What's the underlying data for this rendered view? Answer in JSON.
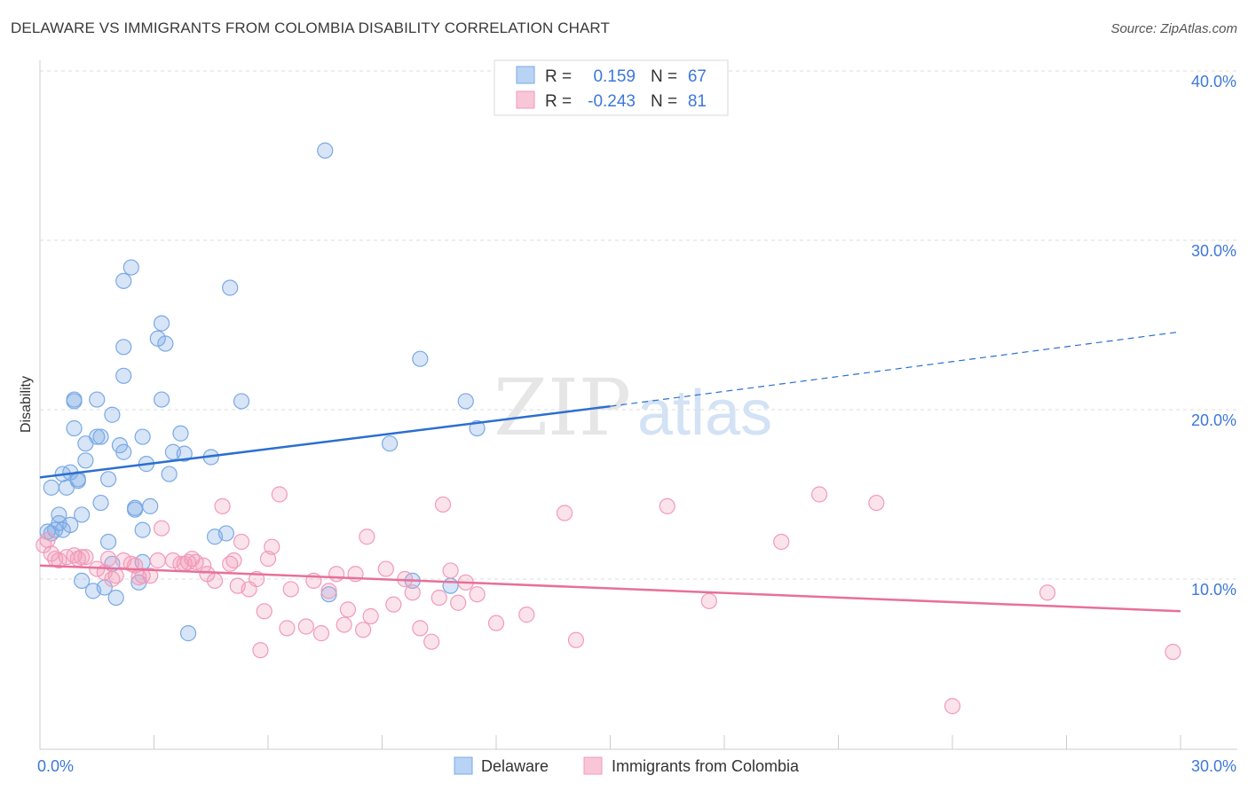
{
  "header": {
    "title": "DELAWARE VS IMMIGRANTS FROM COLOMBIA DISABILITY CORRELATION CHART",
    "source": "Source: ZipAtlas.com"
  },
  "watermark": {
    "zip": "ZIP",
    "atlas": "atlas"
  },
  "stats_box": {
    "rows": [
      {
        "r_label": "R =",
        "r_value": "0.159",
        "n_label": "N =",
        "n_value": "67"
      },
      {
        "r_label": "R =",
        "r_value": "-0.243",
        "n_label": "N =",
        "n_value": "81"
      }
    ]
  },
  "colors": {
    "delaware": "#7aa9e6",
    "delaware_line": "#2b6fd0",
    "colombia": "#f29ab8",
    "colombia_line": "#e8709a",
    "value_text": "#3d78d8",
    "grid": "#dddddd"
  },
  "chart_data": {
    "type": "scatter",
    "title": "DELAWARE VS IMMIGRANTS FROM COLOMBIA DISABILITY CORRELATION CHART",
    "xlabel": "",
    "ylabel": "Disability",
    "xlim": [
      0,
      30
    ],
    "ylim": [
      0,
      40
    ],
    "x_tick_labels": [
      "0.0%",
      "30.0%"
    ],
    "y_ticks": [
      10,
      20,
      30,
      40
    ],
    "y_tick_labels": [
      "10.0%",
      "20.0%",
      "30.0%",
      "40.0%"
    ],
    "grid": true,
    "legend_position": "bottom-center",
    "series": [
      {
        "name": "Delaware",
        "r": 0.159,
        "n": 67,
        "trend": {
          "x0": 0,
          "y0": 16.0,
          "x1": 15,
          "y1": 20.2,
          "dashed_to_x": 30,
          "dashed_to_y": 24.6
        },
        "points": [
          [
            0.2,
            12.8
          ],
          [
            0.3,
            12.7
          ],
          [
            0.4,
            12.9
          ],
          [
            0.5,
            13.3
          ],
          [
            0.5,
            13.8
          ],
          [
            0.6,
            12.9
          ],
          [
            0.3,
            15.4
          ],
          [
            0.6,
            16.2
          ],
          [
            0.7,
            15.4
          ],
          [
            0.8,
            16.3
          ],
          [
            0.8,
            13.2
          ],
          [
            1.0,
            15.8
          ],
          [
            1.0,
            15.9
          ],
          [
            1.1,
            13.8
          ],
          [
            1.1,
            9.9
          ],
          [
            1.2,
            17.0
          ],
          [
            1.2,
            18.0
          ],
          [
            0.9,
            18.9
          ],
          [
            0.9,
            20.5
          ],
          [
            0.9,
            20.6
          ],
          [
            1.5,
            20.6
          ],
          [
            1.5,
            18.4
          ],
          [
            1.6,
            18.4
          ],
          [
            1.6,
            14.5
          ],
          [
            1.7,
            9.5
          ],
          [
            1.8,
            12.2
          ],
          [
            1.8,
            15.9
          ],
          [
            1.9,
            10.9
          ],
          [
            1.9,
            19.7
          ],
          [
            2.1,
            17.9
          ],
          [
            2.2,
            17.5
          ],
          [
            2.2,
            22.0
          ],
          [
            2.2,
            23.7
          ],
          [
            2.2,
            27.6
          ],
          [
            2.4,
            28.4
          ],
          [
            2.5,
            14.1
          ],
          [
            2.5,
            14.2
          ],
          [
            2.6,
            9.8
          ],
          [
            2.7,
            11.0
          ],
          [
            2.7,
            12.9
          ],
          [
            2.7,
            18.4
          ],
          [
            2.8,
            16.8
          ],
          [
            2.9,
            14.3
          ],
          [
            3.1,
            24.2
          ],
          [
            3.2,
            25.1
          ],
          [
            3.2,
            20.6
          ],
          [
            3.3,
            23.9
          ],
          [
            3.4,
            16.2
          ],
          [
            3.5,
            17.5
          ],
          [
            3.7,
            18.6
          ],
          [
            3.8,
            17.4
          ],
          [
            3.9,
            6.8
          ],
          [
            4.5,
            17.2
          ],
          [
            4.6,
            12.5
          ],
          [
            4.9,
            12.7
          ],
          [
            5.0,
            27.2
          ],
          [
            5.3,
            20.5
          ],
          [
            7.5,
            35.3
          ],
          [
            7.6,
            9.1
          ],
          [
            9.2,
            18.0
          ],
          [
            9.8,
            9.9
          ],
          [
            10.0,
            23.0
          ],
          [
            10.8,
            9.6
          ],
          [
            11.2,
            20.5
          ],
          [
            11.5,
            18.9
          ],
          [
            1.4,
            9.3
          ],
          [
            2.0,
            8.9
          ]
        ]
      },
      {
        "name": "Immigrants from Colombia",
        "r": -0.243,
        "n": 81,
        "trend": {
          "x0": 0,
          "y0": 10.8,
          "x1": 30,
          "y1": 8.1
        },
        "points": [
          [
            0.1,
            12.0
          ],
          [
            0.2,
            12.3
          ],
          [
            0.3,
            11.5
          ],
          [
            0.4,
            11.2
          ],
          [
            0.5,
            11.1
          ],
          [
            0.7,
            11.3
          ],
          [
            0.9,
            11.4
          ],
          [
            1.0,
            11.2
          ],
          [
            1.1,
            11.3
          ],
          [
            1.2,
            11.3
          ],
          [
            1.5,
            10.6
          ],
          [
            1.7,
            10.4
          ],
          [
            1.8,
            11.2
          ],
          [
            1.9,
            10.0
          ],
          [
            2.0,
            10.2
          ],
          [
            2.2,
            11.1
          ],
          [
            2.4,
            10.9
          ],
          [
            2.5,
            10.8
          ],
          [
            2.6,
            10.1
          ],
          [
            2.7,
            10.2
          ],
          [
            2.9,
            10.2
          ],
          [
            3.1,
            11.1
          ],
          [
            3.2,
            13.0
          ],
          [
            3.5,
            11.1
          ],
          [
            3.7,
            10.9
          ],
          [
            3.8,
            10.9
          ],
          [
            3.9,
            11.0
          ],
          [
            4.0,
            11.2
          ],
          [
            4.1,
            11.0
          ],
          [
            4.3,
            10.8
          ],
          [
            4.4,
            10.3
          ],
          [
            4.6,
            9.9
          ],
          [
            4.8,
            14.3
          ],
          [
            5.0,
            10.9
          ],
          [
            5.1,
            11.1
          ],
          [
            5.2,
            9.6
          ],
          [
            5.3,
            12.2
          ],
          [
            5.5,
            9.4
          ],
          [
            5.7,
            10.0
          ],
          [
            5.8,
            5.8
          ],
          [
            5.9,
            8.1
          ],
          [
            6.0,
            11.2
          ],
          [
            6.1,
            11.9
          ],
          [
            6.3,
            15.0
          ],
          [
            6.5,
            7.1
          ],
          [
            6.6,
            9.4
          ],
          [
            7.0,
            7.2
          ],
          [
            7.2,
            9.9
          ],
          [
            7.4,
            6.8
          ],
          [
            7.6,
            9.3
          ],
          [
            7.8,
            10.3
          ],
          [
            8.0,
            7.3
          ],
          [
            8.1,
            8.2
          ],
          [
            8.3,
            10.3
          ],
          [
            8.5,
            7.0
          ],
          [
            8.6,
            12.5
          ],
          [
            8.7,
            7.8
          ],
          [
            9.1,
            10.6
          ],
          [
            9.3,
            8.5
          ],
          [
            9.6,
            10.0
          ],
          [
            9.8,
            9.2
          ],
          [
            10.0,
            7.1
          ],
          [
            10.3,
            6.3
          ],
          [
            10.5,
            8.9
          ],
          [
            10.6,
            14.4
          ],
          [
            10.8,
            10.5
          ],
          [
            11.0,
            8.6
          ],
          [
            11.2,
            9.8
          ],
          [
            11.5,
            9.1
          ],
          [
            12.0,
            7.4
          ],
          [
            12.8,
            7.9
          ],
          [
            13.8,
            13.9
          ],
          [
            14.1,
            6.4
          ],
          [
            16.5,
            14.3
          ],
          [
            17.6,
            8.7
          ],
          [
            19.5,
            12.2
          ],
          [
            20.5,
            15.0
          ],
          [
            22.0,
            14.5
          ],
          [
            24.0,
            2.5
          ],
          [
            26.5,
            9.2
          ],
          [
            29.8,
            5.7
          ]
        ]
      }
    ]
  },
  "legend": {
    "items": [
      {
        "label": "Delaware"
      },
      {
        "label": "Immigrants from Colombia"
      }
    ]
  }
}
